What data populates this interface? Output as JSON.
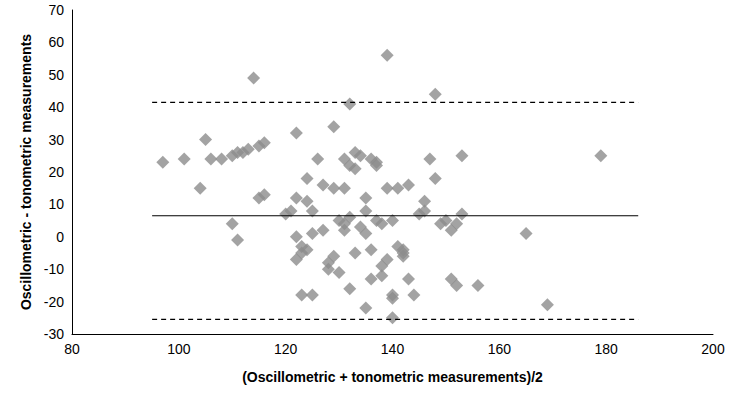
{
  "chart_data": {
    "type": "scatter",
    "xlabel": "(Oscillometric + tonometric measurements)/2",
    "ylabel": "Oscillometric - tonometric measurements",
    "xlim": [
      80,
      200
    ],
    "xticks": [
      80,
      100,
      120,
      140,
      160,
      180,
      200
    ],
    "ylim": [
      -30,
      70
    ],
    "yticks": [
      -30,
      -20,
      -10,
      0,
      10,
      20,
      30,
      40,
      50,
      60,
      70
    ],
    "grid": false,
    "series": [
      {
        "type": "scatter",
        "color": "#8c8c8c",
        "marker": "diamond",
        "x": [
          97,
          101,
          104,
          105,
          106,
          108,
          110,
          110,
          111,
          111,
          112,
          113,
          114,
          115,
          115,
          116,
          116,
          120,
          121,
          122,
          122,
          122,
          122,
          123,
          123,
          123,
          124,
          124,
          124,
          125,
          125,
          125,
          126,
          127,
          127,
          128,
          128,
          129,
          129,
          129,
          130,
          130,
          131,
          131,
          131,
          131,
          132,
          132,
          132,
          132,
          133,
          133,
          133,
          134,
          134,
          135,
          135,
          135,
          135,
          136,
          136,
          136,
          137,
          137,
          137,
          138,
          138,
          138,
          139,
          139,
          139,
          140,
          140,
          140,
          140,
          141,
          141,
          142,
          142,
          142,
          143,
          143,
          144,
          145,
          146,
          146,
          147,
          148,
          148,
          149,
          150,
          151,
          151,
          152,
          152,
          153,
          153,
          156,
          165,
          169,
          179
        ],
        "values": [
          23,
          24,
          15,
          30,
          24,
          24,
          25,
          4,
          -1,
          26,
          26,
          27,
          49,
          28,
          12,
          29,
          13,
          7,
          8,
          -7,
          0,
          32,
          12,
          -18,
          -5,
          -3,
          -4,
          11,
          18,
          -18,
          8,
          1,
          24,
          16,
          2,
          -8,
          -10,
          15,
          34,
          -6,
          -11,
          5,
          4,
          2,
          24,
          15,
          -16,
          41,
          22,
          6,
          26,
          -5,
          21,
          3,
          25,
          -22,
          12,
          1,
          8,
          -13,
          -4,
          24,
          5,
          23,
          22,
          -9,
          -12,
          4,
          56,
          -7,
          15,
          -18,
          5,
          -19,
          -25,
          -3,
          15,
          -5,
          -6,
          -4,
          16,
          -13,
          -18,
          7,
          11,
          8,
          24,
          44,
          18,
          4,
          5,
          2,
          -13,
          4,
          -15,
          7,
          25,
          -15,
          1,
          -21,
          25
        ]
      },
      {
        "type": "line",
        "color": "#000000",
        "line_style": "solid",
        "x": [
          95,
          186
        ],
        "values": [
          6.5,
          6.5
        ]
      },
      {
        "type": "line",
        "color": "#000000",
        "line_style": "dashed",
        "x": [
          95,
          186
        ],
        "values": [
          41.5,
          41.5
        ]
      },
      {
        "type": "line",
        "color": "#000000",
        "line_style": "dashed",
        "x": [
          95,
          186
        ],
        "values": [
          -25.5,
          -25.5
        ]
      }
    ]
  }
}
